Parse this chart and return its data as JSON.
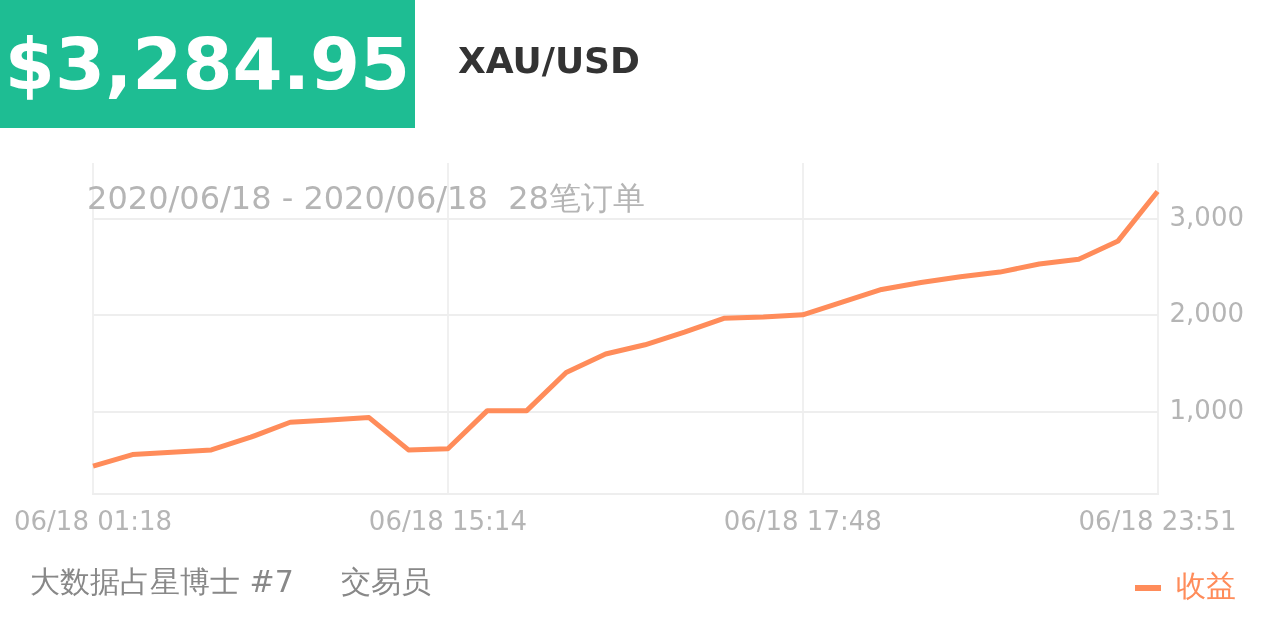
{
  "chart_data": {
    "type": "line",
    "title": "$3,284.95",
    "subtitle": "XAU/USD",
    "annotations": [
      "2020/06/18 - 2020/06/18  28笔订单",
      "大数据占星博士 #7     交易员"
    ],
    "categories": [
      "06/18 01:18",
      null,
      null,
      null,
      null,
      null,
      null,
      null,
      null,
      "06/18 15:14",
      null,
      null,
      null,
      null,
      null,
      null,
      null,
      null,
      "06/18 17:48",
      null,
      null,
      null,
      null,
      null,
      null,
      null,
      null,
      "06/18 23:51"
    ],
    "series": [
      {
        "name": "收益",
        "color": "#ff8c5a",
        "values": [
          437,
          557,
          581,
          605,
          737,
          892,
          916,
          940,
          605,
          617,
          1012,
          1012,
          1407,
          1599,
          1695,
          1826,
          1970,
          1982,
          2006,
          2138,
          2269,
          2341,
          2401,
          2449,
          2533,
          2581,
          2772,
          3285
        ]
      }
    ],
    "ylim": [
      150,
      3580
    ],
    "yticks": [
      {
        "value": 1000,
        "label": "1,000"
      },
      {
        "value": 2000,
        "label": "2,000"
      },
      {
        "value": 3000,
        "label": "3,000"
      }
    ],
    "grid": true,
    "legend": "bottom right",
    "marker": "none",
    "line_style": "solid"
  }
}
